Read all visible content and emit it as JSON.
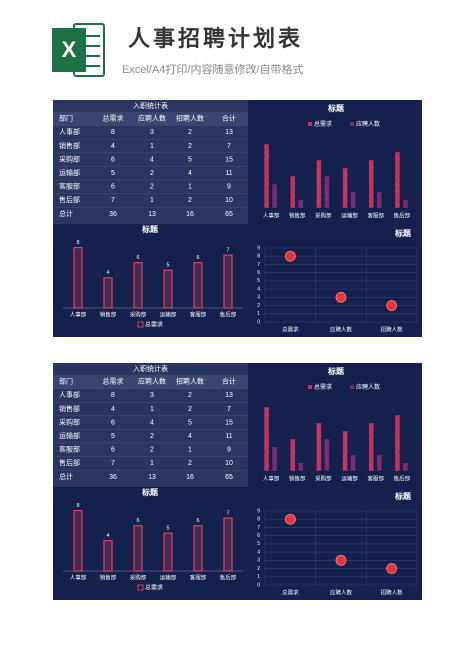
{
  "header": {
    "title": "人事招聘计划表",
    "subtitle": "Excel/A4打印/内容随意修改/自带格式"
  },
  "dashboards": [
    {
      "table": {
        "title": "入职统计表",
        "columns": [
          "部门",
          "总需求",
          "应聘人数",
          "招聘人数",
          "合计"
        ],
        "rows": [
          [
            "人事部",
            8,
            3,
            2,
            13
          ],
          [
            "销售部",
            4,
            1,
            2,
            7
          ],
          [
            "采购部",
            6,
            4,
            5,
            15
          ],
          [
            "运输部",
            5,
            2,
            4,
            11
          ],
          [
            "客服部",
            6,
            2,
            1,
            9
          ],
          [
            "售后部",
            7,
            1,
            2,
            10
          ],
          [
            "总计",
            36,
            13,
            16,
            65
          ]
        ]
      },
      "bar_chart": {
        "type": "bar",
        "title": "标题",
        "categories": [
          "人事部",
          "销售部",
          "采购部",
          "运输部",
          "客服部",
          "售后部"
        ],
        "series": [
          {
            "name": "总需求",
            "color": "#c23560",
            "values": [
              8,
              4,
              6,
              5,
              6,
              7
            ]
          },
          {
            "name": "应聘人数",
            "color": "#7b2d72",
            "values": [
              3,
              1,
              4,
              2,
              2,
              1
            ]
          }
        ],
        "ylim": [
          0,
          9
        ]
      },
      "column_chart": {
        "type": "bar",
        "title": "标题",
        "categories": [
          "人事部",
          "销售部",
          "采购部",
          "运输部",
          "客服部",
          "售后部"
        ],
        "series": [
          {
            "name": "总需求",
            "color": "#e0405a",
            "values": [
              8,
              4,
              6,
              5,
              6,
              7
            ]
          }
        ],
        "ylim": [
          0,
          9
        ]
      },
      "scatter_chart": {
        "type": "scatter",
        "title": "标题",
        "categories": [
          "总需求",
          "应聘人数",
          "招聘人数"
        ],
        "values": [
          8,
          3,
          2
        ],
        "color": "#e8333a",
        "ylim": [
          0,
          9
        ],
        "yticks": [
          0,
          1,
          2,
          3,
          4,
          5,
          6,
          7,
          8,
          9
        ],
        "grid": true
      }
    },
    {
      "table": {
        "title": "入职统计表",
        "columns": [
          "部门",
          "总需求",
          "应聘人数",
          "招聘人数",
          "合计"
        ],
        "rows": [
          [
            "人事部",
            8,
            3,
            2,
            13
          ],
          [
            "销售部",
            4,
            1,
            2,
            7
          ],
          [
            "采购部",
            6,
            4,
            5,
            15
          ],
          [
            "运输部",
            5,
            2,
            4,
            11
          ],
          [
            "客服部",
            6,
            2,
            1,
            9
          ],
          [
            "售后部",
            7,
            1,
            2,
            10
          ],
          [
            "总计",
            36,
            13,
            16,
            65
          ]
        ]
      },
      "bar_chart": {
        "type": "bar",
        "title": "标题",
        "categories": [
          "人事部",
          "销售部",
          "采购部",
          "运输部",
          "客服部",
          "售后部"
        ],
        "series": [
          {
            "name": "总需求",
            "color": "#c23560",
            "values": [
              8,
              4,
              6,
              5,
              6,
              7
            ]
          },
          {
            "name": "应聘人数",
            "color": "#7b2d72",
            "values": [
              3,
              1,
              4,
              2,
              2,
              1
            ]
          }
        ],
        "ylim": [
          0,
          9
        ]
      },
      "column_chart": {
        "type": "bar",
        "title": "标题",
        "categories": [
          "人事部",
          "销售部",
          "采购部",
          "运输部",
          "客服部",
          "售后部"
        ],
        "series": [
          {
            "name": "总需求",
            "color": "#e0405a",
            "values": [
              8,
              4,
              6,
              5,
              6,
              7
            ]
          }
        ],
        "ylim": [
          0,
          9
        ]
      },
      "scatter_chart": {
        "type": "scatter",
        "title": "标题",
        "categories": [
          "总需求",
          "应聘人数",
          "招聘人数"
        ],
        "values": [
          8,
          3,
          2
        ],
        "color": "#e8333a",
        "ylim": [
          0,
          9
        ],
        "yticks": [
          0,
          1,
          2,
          3,
          4,
          5,
          6,
          7,
          8,
          9
        ],
        "grid": true
      }
    }
  ]
}
